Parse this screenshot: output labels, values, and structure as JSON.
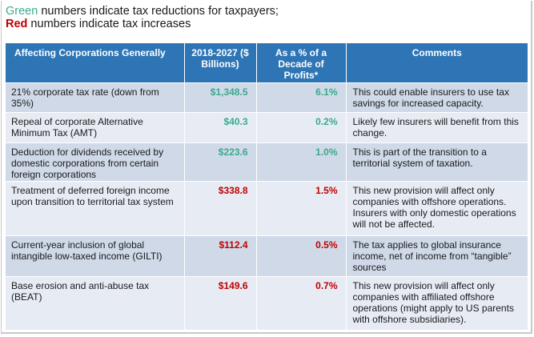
{
  "legend": {
    "green_word": "Green",
    "green_rest": " numbers indicate tax reductions for taxpayers;",
    "red_word": "Red",
    "red_rest": " numbers indicate tax increases"
  },
  "colors": {
    "header_bg": "#2e75b6",
    "reduction": "#3aaa8c",
    "increase": "#c00000",
    "row_odd": "#cfd9e8",
    "row_even": "#e7ebf4"
  },
  "table": {
    "headers": [
      "Affecting Corporations Generally",
      "2018-2027 ($ Billions)",
      "As a % of a Decade of Profits*",
      "Comments"
    ],
    "rows": [
      {
        "provision": "21% corporate tax rate (down from 35%)",
        "amount": "$1,348.5",
        "percent": "6.1%",
        "comment": "This could enable insurers to use tax savings for increased capacity.",
        "type": "reduction"
      },
      {
        "provision": "Repeal of corporate Alternative Minimum Tax (AMT)",
        "amount": "$40.3",
        "percent": "0.2%",
        "comment": "Likely few insurers will benefit from this change.",
        "type": "reduction"
      },
      {
        "provision": "Deduction for dividends received by domestic corporations from certain foreign corporations",
        "amount": "$223.6",
        "percent": "1.0%",
        "comment": "This is part of the transition to a territorial system of taxation.",
        "type": "reduction"
      },
      {
        "provision": "Treatment of deferred foreign income upon transition to territorial tax system",
        "amount": "$338.8",
        "percent": "1.5%",
        "comment": "This new provision will affect only companies with offshore operations. Insurers with only domestic operations will not be affected.",
        "type": "increase"
      },
      {
        "provision": "Current-year inclusion of global intangible low-taxed income (GILTI)",
        "amount": "$112.4",
        "percent": "0.5%",
        "comment": "The tax applies to global insurance income, net of income from “tangible” sources",
        "type": "increase"
      },
      {
        "provision": "Base erosion and anti-abuse tax (BEAT)",
        "amount": "$149.6",
        "percent": "0.7%",
        "comment": "This new provision will affect only companies with affiliated offshore operations (might apply to US parents with offshore subsidiaries).",
        "type": "increase"
      }
    ]
  }
}
